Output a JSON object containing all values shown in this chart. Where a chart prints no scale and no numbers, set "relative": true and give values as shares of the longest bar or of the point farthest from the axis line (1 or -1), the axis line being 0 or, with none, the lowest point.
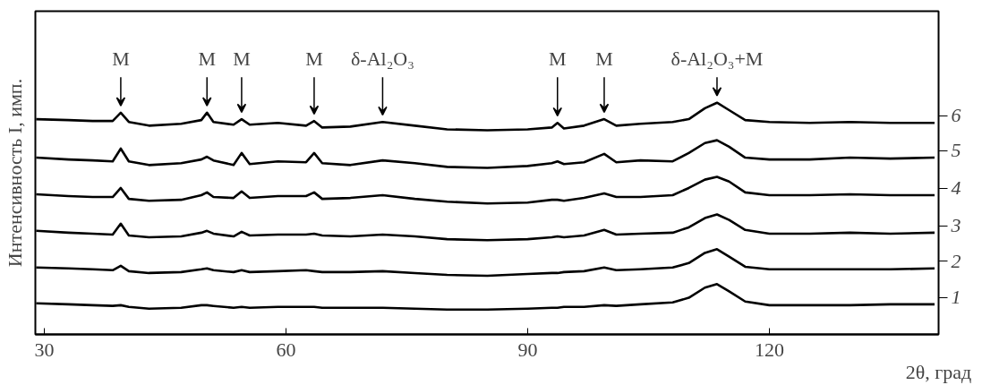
{
  "chart_data": {
    "type": "line",
    "relative": true,
    "xlabel": "2θ, град",
    "legend": "right",
    "ylabel": "Интенсивность I, имп.",
    "xlim": [
      28.9,
      141
    ],
    "xticks": [
      30,
      60,
      90,
      120
    ],
    "x": [
      29,
      33,
      36,
      38.5,
      39.5,
      40.5,
      43,
      47,
      49.5,
      50.2,
      51,
      53.5,
      54.5,
      55.5,
      59,
      62.5,
      63.5,
      64.5,
      68,
      72,
      76,
      80,
      85,
      90,
      93,
      93.7,
      94.5,
      97,
      99.5,
      101,
      104,
      108,
      110,
      112,
      113.5,
      115,
      117,
      120,
      125,
      130,
      135,
      140.5
    ],
    "series": [
      {
        "name": "1",
        "color": "#000000",
        "values": [
          0.134,
          0.13,
          0.126,
          0.123,
          0.126,
          0.119,
          0.111,
          0.115,
          0.126,
          0.126,
          0.123,
          0.115,
          0.119,
          0.115,
          0.119,
          0.119,
          0.119,
          0.115,
          0.115,
          0.115,
          0.111,
          0.107,
          0.107,
          0.111,
          0.115,
          0.115,
          0.119,
          0.119,
          0.126,
          0.123,
          0.13,
          0.138,
          0.158,
          0.202,
          0.217,
          0.186,
          0.142,
          0.126,
          0.126,
          0.126,
          0.13,
          0.13
        ]
      },
      {
        "name": "2",
        "color": "#000000",
        "values": [
          0.289,
          0.285,
          0.281,
          0.277,
          0.296,
          0.273,
          0.265,
          0.269,
          0.281,
          0.285,
          0.277,
          0.269,
          0.277,
          0.269,
          0.273,
          0.277,
          0.273,
          0.269,
          0.269,
          0.273,
          0.265,
          0.257,
          0.253,
          0.261,
          0.265,
          0.265,
          0.269,
          0.273,
          0.289,
          0.277,
          0.281,
          0.289,
          0.308,
          0.352,
          0.368,
          0.336,
          0.292,
          0.281,
          0.281,
          0.281,
          0.281,
          0.285
        ]
      },
      {
        "name": "3",
        "color": "#000000",
        "values": [
          0.447,
          0.439,
          0.435,
          0.431,
          0.478,
          0.427,
          0.419,
          0.423,
          0.439,
          0.447,
          0.435,
          0.423,
          0.443,
          0.427,
          0.431,
          0.431,
          0.435,
          0.427,
          0.423,
          0.431,
          0.423,
          0.411,
          0.407,
          0.411,
          0.419,
          0.423,
          0.419,
          0.427,
          0.451,
          0.431,
          0.435,
          0.439,
          0.462,
          0.502,
          0.518,
          0.494,
          0.451,
          0.435,
          0.435,
          0.439,
          0.435,
          0.439
        ]
      },
      {
        "name": "4",
        "color": "#000000",
        "values": [
          0.605,
          0.597,
          0.593,
          0.593,
          0.632,
          0.585,
          0.577,
          0.581,
          0.601,
          0.613,
          0.593,
          0.589,
          0.617,
          0.589,
          0.597,
          0.597,
          0.613,
          0.585,
          0.589,
          0.601,
          0.585,
          0.573,
          0.565,
          0.569,
          0.581,
          0.581,
          0.577,
          0.589,
          0.609,
          0.593,
          0.593,
          0.601,
          0.632,
          0.668,
          0.68,
          0.66,
          0.613,
          0.601,
          0.601,
          0.605,
          0.601,
          0.601
        ]
      },
      {
        "name": "5",
        "color": "#000000",
        "values": [
          0.763,
          0.755,
          0.751,
          0.747,
          0.802,
          0.747,
          0.731,
          0.739,
          0.755,
          0.767,
          0.751,
          0.731,
          0.783,
          0.735,
          0.747,
          0.743,
          0.783,
          0.739,
          0.731,
          0.751,
          0.739,
          0.723,
          0.719,
          0.727,
          0.739,
          0.747,
          0.735,
          0.743,
          0.779,
          0.743,
          0.751,
          0.747,
          0.783,
          0.826,
          0.838,
          0.81,
          0.763,
          0.755,
          0.755,
          0.763,
          0.759,
          0.763
        ]
      },
      {
        "name": "6",
        "color": "#000000",
        "values": [
          0.929,
          0.925,
          0.921,
          0.921,
          0.957,
          0.917,
          0.901,
          0.909,
          0.925,
          0.957,
          0.917,
          0.905,
          0.929,
          0.905,
          0.913,
          0.901,
          0.921,
          0.893,
          0.897,
          0.917,
          0.901,
          0.885,
          0.881,
          0.885,
          0.893,
          0.913,
          0.889,
          0.901,
          0.929,
          0.901,
          0.909,
          0.917,
          0.929,
          0.976,
          1.0,
          0.968,
          0.925,
          0.917,
          0.913,
          0.917,
          0.913,
          0.913
        ]
      }
    ],
    "annotations": [
      {
        "text": "M",
        "x": 39.5,
        "y": 0.957
      },
      {
        "text": "M",
        "x": 50.2,
        "y": 0.957
      },
      {
        "text": "M",
        "x": 54.5,
        "y": 0.929
      },
      {
        "text": "M",
        "x": 63.5,
        "y": 0.921
      },
      {
        "text": "δ-Al₂O₃",
        "x": 72,
        "y": 0.917
      },
      {
        "text": "M",
        "x": 93.7,
        "y": 0.913
      },
      {
        "text": "M",
        "x": 99.5,
        "y": 0.929
      },
      {
        "text": "δ-Al₂O₃+M",
        "x": 113.5,
        "y": 1.0
      }
    ]
  }
}
